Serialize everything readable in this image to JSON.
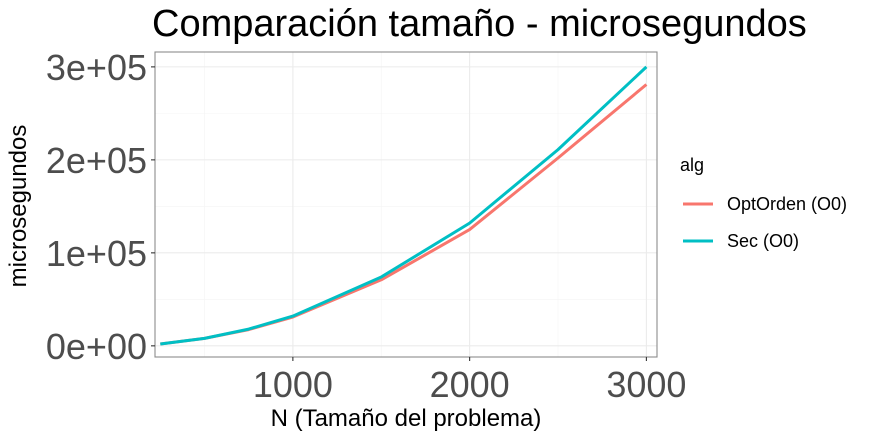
{
  "chart_data": {
    "type": "line",
    "title": "Comparación tamaño - microsegundos",
    "xlabel": "N (Tamaño del problema)",
    "ylabel": "microsegundos",
    "xlim": [
      220,
      3060
    ],
    "ylim": [
      -12000,
      316000
    ],
    "x_ticks": [
      1000,
      2000,
      3000
    ],
    "x_tick_labels": [
      "1000",
      "2000",
      "3000"
    ],
    "y_ticks": [
      0,
      100000,
      200000,
      300000
    ],
    "y_tick_labels": [
      "0e+00",
      "1e+05",
      "2e+05",
      "3e+05"
    ],
    "grid": true,
    "legend": {
      "title": "alg",
      "position": "right"
    },
    "series": [
      {
        "name": "OptOrden (O0)",
        "color": "#F8766D",
        "x": [
          250,
          500,
          750,
          1000,
          1500,
          2000,
          2500,
          3000
        ],
        "y": [
          2000,
          8000,
          17500,
          31000,
          71000,
          125000,
          202000,
          281000
        ]
      },
      {
        "name": "Sec (O0)",
        "color": "#00BFC4",
        "x": [
          250,
          500,
          750,
          1000,
          1500,
          2000,
          2500,
          3000
        ],
        "y": [
          2000,
          8000,
          18000,
          32000,
          74000,
          132000,
          211000,
          300000
        ]
      }
    ]
  }
}
